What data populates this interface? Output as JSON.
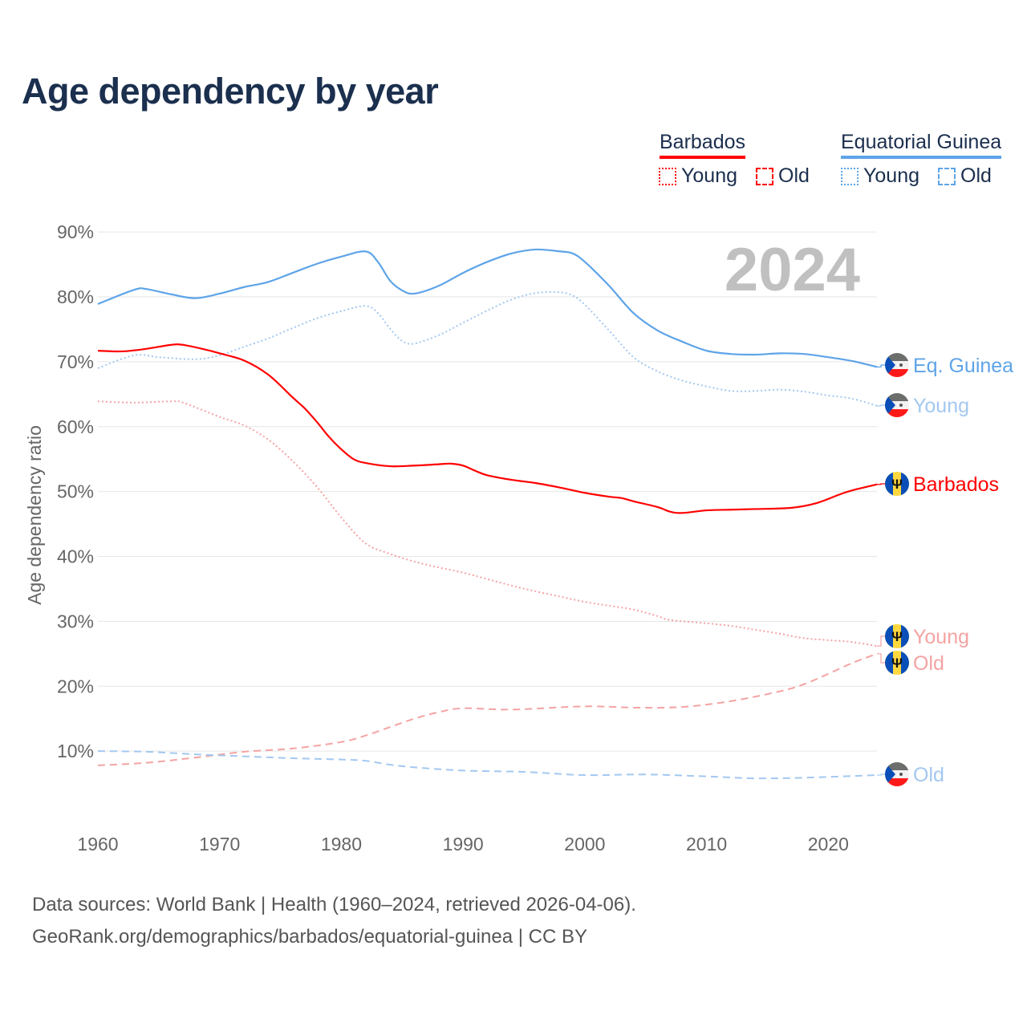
{
  "title": "Age dependency by year",
  "legend": {
    "groups": [
      {
        "name": "Barbados",
        "color": "#ff0000",
        "items": [
          "Young",
          "Old"
        ]
      },
      {
        "name": "Equatorial Guinea",
        "color": "#5ea4e8",
        "items": [
          "Young",
          "Old"
        ]
      }
    ]
  },
  "year_watermark": "2024",
  "source_line1": "Data sources: World Bank | Health (1960–2024, retrieved 2026-04-06).",
  "source_line2": "GeoRank.org/demographics/barbados/equatorial-guinea | CC BY",
  "chart_data": {
    "type": "line",
    "title": "Age dependency by year",
    "xlabel": "",
    "ylabel": "Age dependency ratio",
    "xlim": [
      1960,
      2024
    ],
    "ylim": [
      0,
      90
    ],
    "xticks": [
      "1960",
      "1970",
      "1980",
      "1990",
      "2000",
      "2010",
      "2020"
    ],
    "yticks": [
      "10%",
      "20%",
      "30%",
      "40%",
      "50%",
      "60%",
      "70%",
      "80%",
      "90%"
    ],
    "grid": true,
    "series": [
      {
        "name": "Equatorial Guinea",
        "end_label": "Eq. Guinea",
        "color": "#5ea4e8",
        "style": "solid",
        "flag": "gq",
        "x": [
          1960,
          1963,
          1964,
          1966,
          1968,
          1970,
          1972,
          1974,
          1976,
          1978,
          1980,
          1982,
          1983,
          1984,
          1985,
          1986,
          1988,
          1990,
          1992,
          1994,
          1996,
          1998,
          1999,
          2000,
          2002,
          2004,
          2006,
          2008,
          2010,
          2012,
          2014,
          2016,
          2018,
          2020,
          2022,
          2024
        ],
        "y": [
          78.9,
          81.1,
          81.2,
          80.4,
          79.8,
          80.5,
          81.5,
          82.3,
          83.7,
          85.1,
          86.2,
          87.0,
          85.4,
          82.5,
          81.0,
          80.5,
          81.7,
          83.7,
          85.4,
          86.7,
          87.3,
          87.0,
          86.7,
          85.4,
          81.7,
          77.5,
          74.8,
          73.1,
          71.7,
          71.2,
          71.1,
          71.3,
          71.2,
          70.7,
          70.1,
          69.2
        ]
      },
      {
        "name": "Equatorial Guinea Young",
        "end_label": "Young",
        "color": "#a3c8f0",
        "style": "dotted",
        "flag": "gq",
        "x": [
          1960,
          1963,
          1965,
          1968,
          1970,
          1972,
          1974,
          1976,
          1978,
          1980,
          1982,
          1983,
          1984,
          1985,
          1986,
          1988,
          1990,
          1992,
          1994,
          1996,
          1998,
          1999,
          2000,
          2002,
          2004,
          2006,
          2008,
          2010,
          2012,
          2014,
          2016,
          2018,
          2020,
          2022,
          2024
        ],
        "y": [
          69.0,
          71.0,
          70.7,
          70.4,
          71.0,
          72.3,
          73.6,
          75.2,
          76.7,
          77.8,
          78.6,
          77.5,
          75.1,
          73.2,
          72.8,
          74.1,
          76.0,
          77.9,
          79.6,
          80.6,
          80.7,
          80.2,
          78.8,
          74.8,
          70.7,
          68.5,
          67.1,
          66.2,
          65.5,
          65.5,
          65.7,
          65.4,
          64.8,
          64.3,
          63.2
        ]
      },
      {
        "name": "Barbados",
        "end_label": "Barbados",
        "color": "#ff0000",
        "style": "solid",
        "flag": "bb",
        "x": [
          1960,
          1962,
          1964,
          1966,
          1967,
          1969,
          1970,
          1972,
          1974,
          1976,
          1977,
          1978,
          1979,
          1980,
          1981,
          1982,
          1984,
          1986,
          1988,
          1989,
          1990,
          1991,
          1992,
          1994,
          1996,
          1998,
          2000,
          2002,
          2003,
          2004,
          2006,
          2007,
          2008,
          2010,
          2012,
          2014,
          2017,
          2019,
          2021,
          2022,
          2024
        ],
        "y": [
          71.7,
          71.6,
          72.0,
          72.6,
          72.6,
          71.8,
          71.3,
          70.2,
          68.0,
          64.5,
          62.8,
          60.7,
          58.4,
          56.5,
          55.0,
          54.4,
          53.9,
          54.0,
          54.2,
          54.3,
          54.0,
          53.2,
          52.5,
          51.8,
          51.3,
          50.6,
          49.8,
          49.2,
          49.0,
          48.5,
          47.6,
          46.9,
          46.7,
          47.1,
          47.2,
          47.3,
          47.5,
          48.2,
          49.6,
          50.2,
          51.1
        ]
      },
      {
        "name": "Barbados Young",
        "end_label": "Young",
        "color": "#f5a3a3",
        "style": "dotted",
        "flag": "bb",
        "x": [
          1960,
          1963,
          1966,
          1967,
          1970,
          1972,
          1974,
          1976,
          1978,
          1980,
          1982,
          1984,
          1986,
          1988,
          1990,
          1992,
          1994,
          1996,
          1998,
          2000,
          2002,
          2004,
          2006,
          2007,
          2010,
          2012,
          2014,
          2016,
          2018,
          2020,
          2022,
          2024
        ],
        "y": [
          63.9,
          63.7,
          63.9,
          63.7,
          61.5,
          60.2,
          58.0,
          54.7,
          50.7,
          46.0,
          42.0,
          40.4,
          39.2,
          38.3,
          37.5,
          36.5,
          35.5,
          34.6,
          33.8,
          33.0,
          32.4,
          31.8,
          30.8,
          30.2,
          29.7,
          29.3,
          28.7,
          28.1,
          27.4,
          27.1,
          26.8,
          26.2
        ]
      },
      {
        "name": "Barbados Old",
        "end_label": "Old",
        "color": "#f5a3a3",
        "style": "dashed",
        "flag": "bb",
        "x": [
          1960,
          1964,
          1968,
          1972,
          1976,
          1980,
          1982,
          1984,
          1986,
          1988,
          1990,
          1994,
          2000,
          2004,
          2008,
          2012,
          2016,
          2018,
          2020,
          2022,
          2024
        ],
        "y": [
          7.8,
          8.2,
          9.0,
          9.9,
          10.4,
          11.4,
          12.4,
          13.7,
          15.0,
          16.0,
          16.6,
          16.4,
          16.9,
          16.7,
          16.8,
          17.7,
          19.2,
          20.3,
          21.9,
          23.6,
          25.0
        ]
      },
      {
        "name": "Equatorial Guinea Old",
        "end_label": "Old",
        "color": "#a3c8f0",
        "style": "dashed",
        "flag": "gq",
        "x": [
          1960,
          1964,
          1968,
          1972,
          1976,
          1980,
          1982,
          1984,
          1986,
          1990,
          1995,
          2000,
          2005,
          2010,
          2014,
          2018,
          2024
        ],
        "y": [
          10.0,
          9.9,
          9.5,
          9.2,
          8.9,
          8.7,
          8.5,
          7.9,
          7.5,
          7.0,
          6.8,
          6.3,
          6.4,
          6.1,
          5.8,
          5.9,
          6.3
        ]
      }
    ]
  }
}
